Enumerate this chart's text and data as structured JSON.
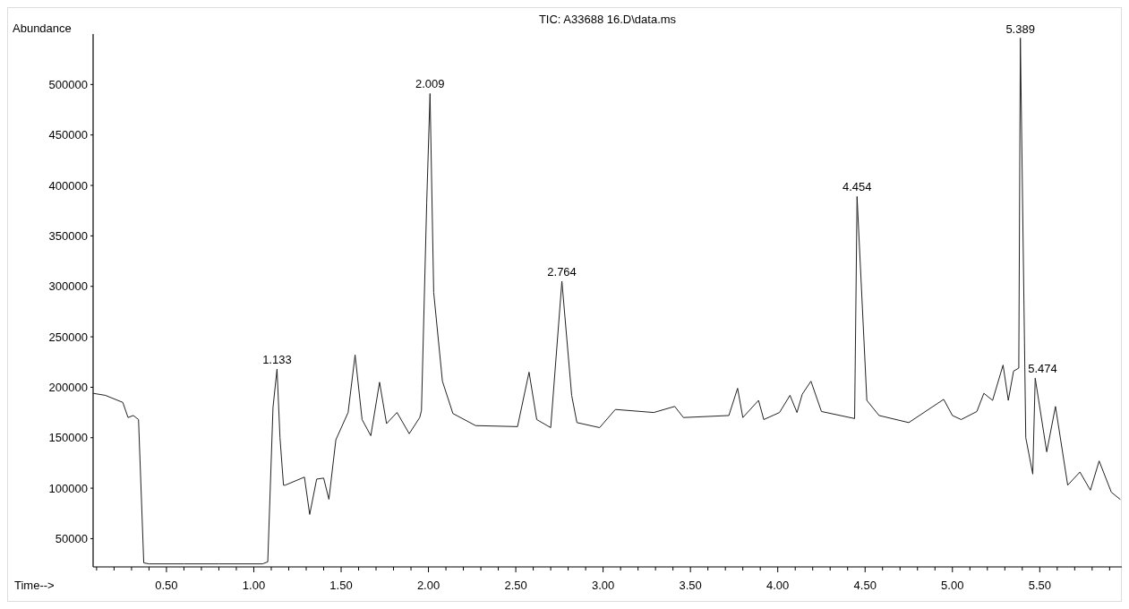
{
  "chart_data": {
    "type": "line",
    "title": "TIC: A33688 16.D\\data.ms",
    "xlabel": "Time-->",
    "ylabel": "Abundance",
    "xlim": [
      0.08,
      5.97
    ],
    "ylim": [
      22000,
      550000
    ],
    "xticks": [
      {
        "value": 0.1,
        "label": null
      },
      {
        "value": 0.2,
        "label": null
      },
      {
        "value": 0.3,
        "label": null
      },
      {
        "value": 0.4,
        "label": null
      },
      {
        "value": 0.5,
        "label": "0.50"
      },
      {
        "value": 0.6,
        "label": null
      },
      {
        "value": 0.7,
        "label": null
      },
      {
        "value": 0.8,
        "label": null
      },
      {
        "value": 0.9,
        "label": null
      },
      {
        "value": 1.0,
        "label": "1.00"
      },
      {
        "value": 1.1,
        "label": null
      },
      {
        "value": 1.2,
        "label": null
      },
      {
        "value": 1.3,
        "label": null
      },
      {
        "value": 1.4,
        "label": null
      },
      {
        "value": 1.5,
        "label": "1.50"
      },
      {
        "value": 1.6,
        "label": null
      },
      {
        "value": 1.7,
        "label": null
      },
      {
        "value": 1.8,
        "label": null
      },
      {
        "value": 1.9,
        "label": null
      },
      {
        "value": 2.0,
        "label": "2.00"
      },
      {
        "value": 2.1,
        "label": null
      },
      {
        "value": 2.2,
        "label": null
      },
      {
        "value": 2.3,
        "label": null
      },
      {
        "value": 2.4,
        "label": null
      },
      {
        "value": 2.5,
        "label": "2.50"
      },
      {
        "value": 2.6,
        "label": null
      },
      {
        "value": 2.7,
        "label": null
      },
      {
        "value": 2.8,
        "label": null
      },
      {
        "value": 2.9,
        "label": null
      },
      {
        "value": 3.0,
        "label": "3.00"
      },
      {
        "value": 3.1,
        "label": null
      },
      {
        "value": 3.2,
        "label": null
      },
      {
        "value": 3.3,
        "label": null
      },
      {
        "value": 3.4,
        "label": null
      },
      {
        "value": 3.5,
        "label": "3.50"
      },
      {
        "value": 3.6,
        "label": null
      },
      {
        "value": 3.7,
        "label": null
      },
      {
        "value": 3.8,
        "label": null
      },
      {
        "value": 3.9,
        "label": null
      },
      {
        "value": 4.0,
        "label": "4.00"
      },
      {
        "value": 4.1,
        "label": null
      },
      {
        "value": 4.2,
        "label": null
      },
      {
        "value": 4.3,
        "label": null
      },
      {
        "value": 4.4,
        "label": null
      },
      {
        "value": 4.5,
        "label": "4.50"
      },
      {
        "value": 4.6,
        "label": null
      },
      {
        "value": 4.7,
        "label": null
      },
      {
        "value": 4.8,
        "label": null
      },
      {
        "value": 4.9,
        "label": null
      },
      {
        "value": 5.0,
        "label": "5.00"
      },
      {
        "value": 5.1,
        "label": null
      },
      {
        "value": 5.2,
        "label": null
      },
      {
        "value": 5.3,
        "label": null
      },
      {
        "value": 5.4,
        "label": null
      },
      {
        "value": 5.5,
        "label": "5.50"
      },
      {
        "value": 5.6,
        "label": null
      },
      {
        "value": 5.7,
        "label": null
      },
      {
        "value": 5.8,
        "label": null
      },
      {
        "value": 5.9,
        "label": null
      }
    ],
    "yticks": [
      50000,
      100000,
      150000,
      200000,
      250000,
      300000,
      350000,
      400000,
      450000,
      500000
    ],
    "grid": false,
    "marker": "none",
    "line_style": "solid",
    "series": [
      {
        "color": "#222222",
        "x": [
          0.08,
          0.15,
          0.25,
          0.28,
          0.31,
          0.34,
          0.37,
          0.4,
          0.6,
          0.8,
          1.05,
          1.08,
          1.11,
          1.133,
          1.15,
          1.17,
          1.18,
          1.29,
          1.32,
          1.36,
          1.4,
          1.43,
          1.47,
          1.54,
          1.58,
          1.62,
          1.67,
          1.72,
          1.76,
          1.82,
          1.89,
          1.95,
          1.96,
          1.99,
          2.009,
          2.03,
          2.08,
          2.14,
          2.27,
          2.51,
          2.576,
          2.62,
          2.7,
          2.764,
          2.82,
          2.85,
          2.98,
          3.07,
          3.29,
          3.41,
          3.46,
          3.72,
          3.77,
          3.8,
          3.89,
          3.92,
          4.01,
          4.07,
          4.11,
          4.14,
          4.19,
          4.25,
          4.44,
          4.454,
          4.51,
          4.58,
          4.75,
          4.95,
          5.0,
          5.05,
          5.14,
          5.18,
          5.23,
          5.29,
          5.32,
          5.35,
          5.38,
          5.389,
          5.42,
          5.46,
          5.474,
          5.54,
          5.59,
          5.66,
          5.73,
          5.79,
          5.84,
          5.91,
          5.96
        ],
        "values": [
          194000,
          192000,
          185000,
          170000,
          172000,
          168000,
          26000,
          25000,
          25000,
          25000,
          25000,
          27000,
          180000,
          218000,
          150000,
          103000,
          103000,
          111000,
          74000,
          109000,
          110000,
          89000,
          148000,
          175000,
          232000,
          168000,
          152000,
          205000,
          164000,
          175000,
          154000,
          170000,
          177000,
          383000,
          491000,
          294000,
          206000,
          174000,
          162000,
          161000,
          215000,
          168000,
          160000,
          305000,
          192000,
          165000,
          160000,
          178000,
          175000,
          181000,
          170000,
          172000,
          199000,
          170000,
          187000,
          168000,
          175000,
          192000,
          175000,
          193000,
          206000,
          176000,
          169000,
          389000,
          187000,
          172000,
          165000,
          188000,
          172000,
          168000,
          176000,
          194000,
          187000,
          222000,
          187000,
          216000,
          219000,
          546000,
          150000,
          114000,
          209000,
          136000,
          181000,
          103000,
          116000,
          98000,
          127000,
          96000,
          89000
        ]
      }
    ],
    "annotations": [
      {
        "text": "1.133",
        "x": 1.133,
        "y": 218000
      },
      {
        "text": "2.009",
        "x": 2.009,
        "y": 491000
      },
      {
        "text": "2.764",
        "x": 2.764,
        "y": 305000
      },
      {
        "text": "4.454",
        "x": 4.454,
        "y": 389000
      },
      {
        "text": "5.389",
        "x": 5.389,
        "y": 546000
      },
      {
        "text": "5.474",
        "x": 5.474,
        "y": 209000
      }
    ]
  }
}
